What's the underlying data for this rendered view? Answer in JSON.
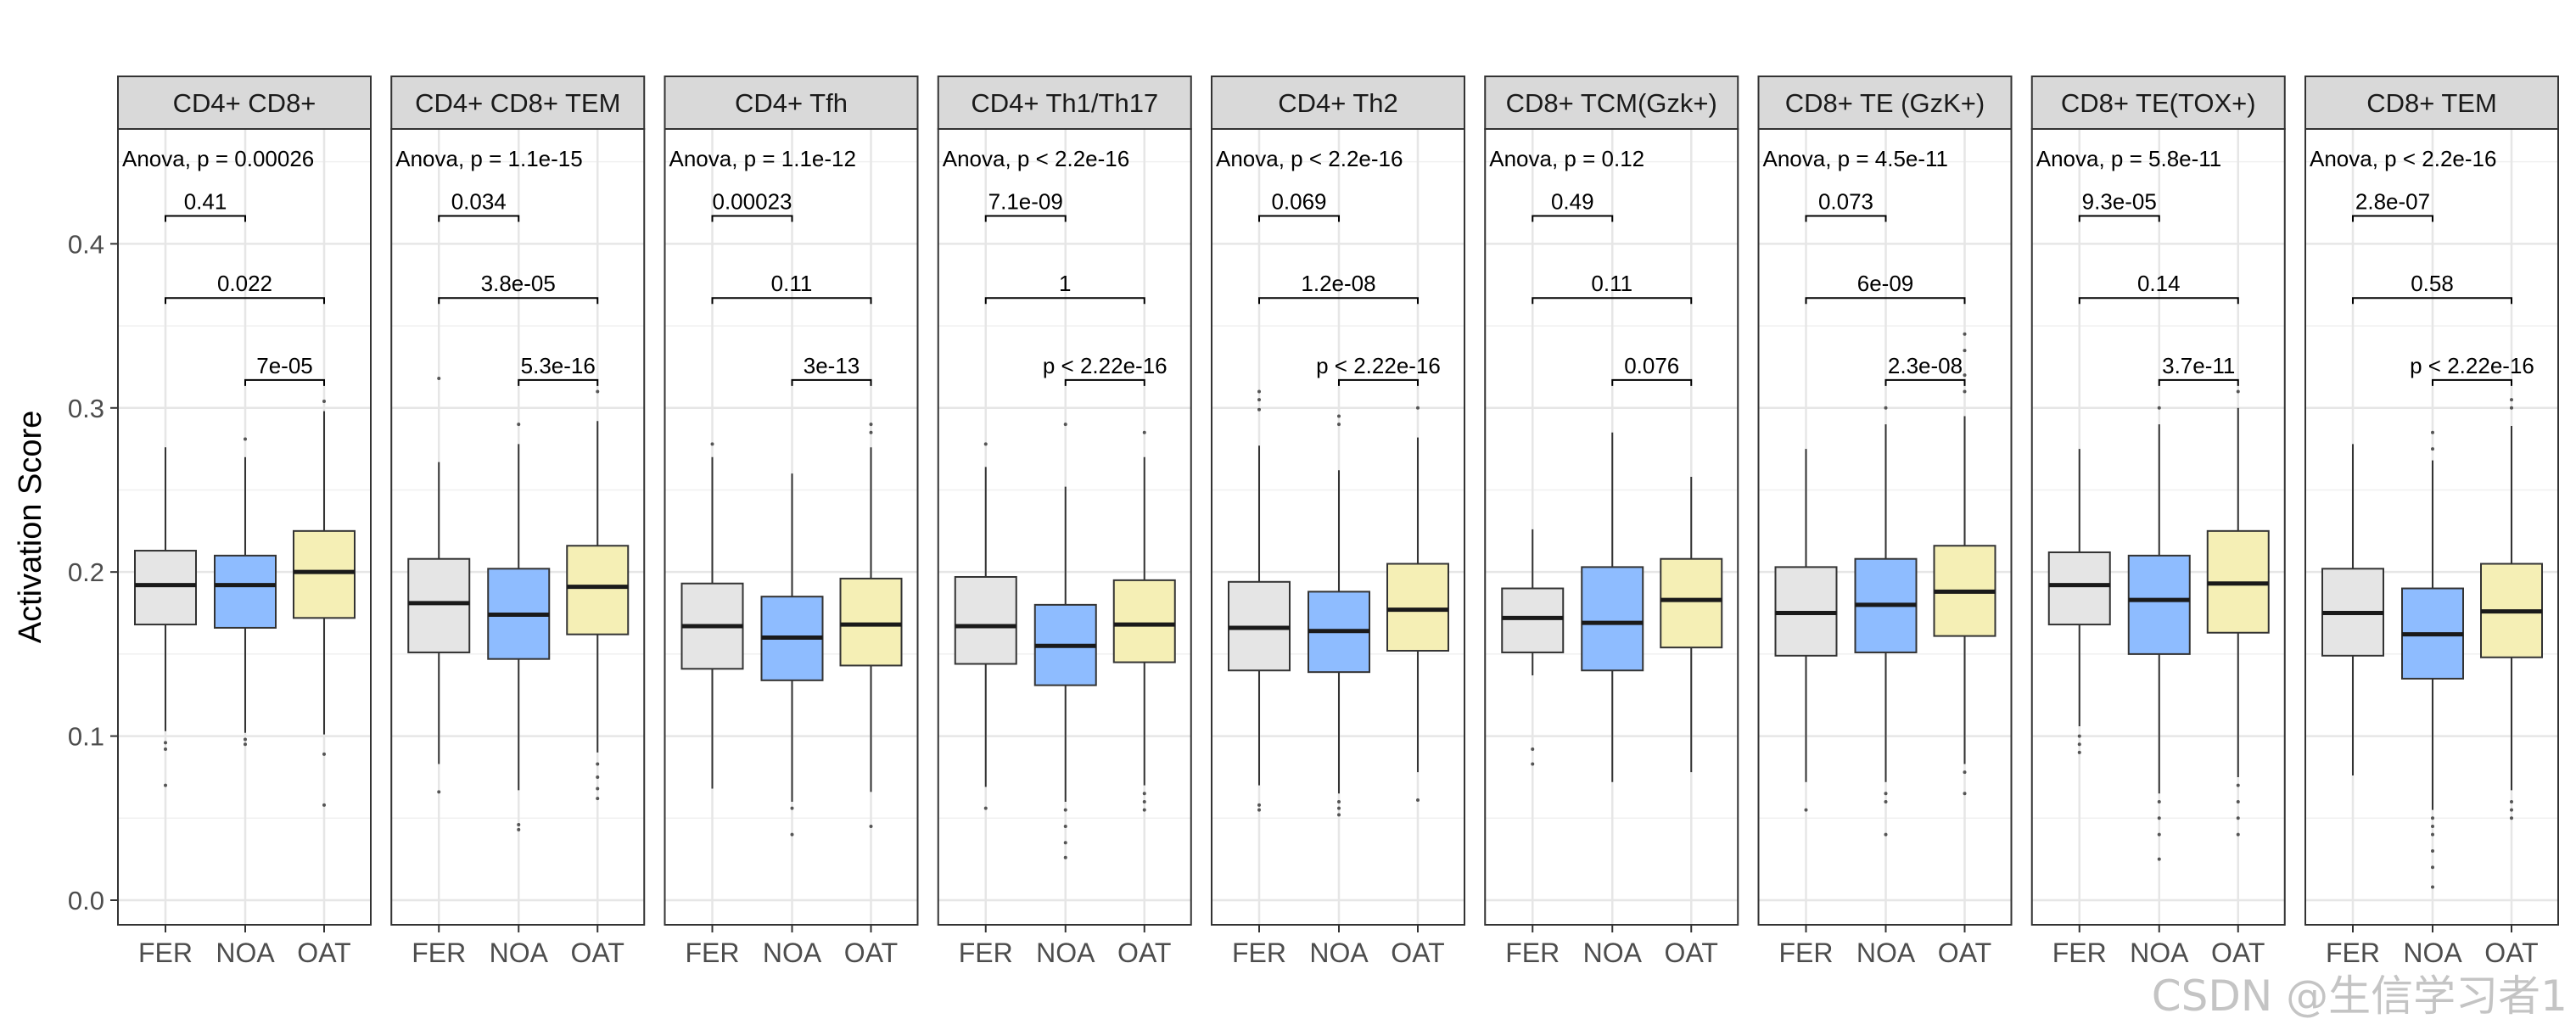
{
  "chart_data": {
    "type": "box",
    "ylabel": "Activation Score",
    "yticks": [
      0.0,
      0.1,
      0.2,
      0.3,
      0.4
    ],
    "ytick_labels": [
      "0.0",
      "0.1",
      "0.2",
      "0.3",
      "0.4"
    ],
    "ylim": [
      -0.015,
      0.47
    ],
    "categories": [
      "FER",
      "NOA",
      "OAT"
    ],
    "category_colors": [
      "#e5e5e5",
      "#8ebcff",
      "#f5efb5"
    ],
    "grid": true,
    "legend": "none",
    "panels": [
      {
        "title": "CD4+ CD8+",
        "anova": "Anova, p = 0.00026",
        "pvalues": {
          "FER_NOA": "0.41",
          "FER_OAT": "0.022",
          "NOA_OAT": "7e-05"
        },
        "boxes": [
          {
            "group": "FER",
            "lower_whisker": 0.103,
            "q1": 0.168,
            "median": 0.192,
            "q3": 0.213,
            "upper_whisker": 0.276,
            "outliers": [
              0.096,
              0.092,
              0.07
            ]
          },
          {
            "group": "NOA",
            "lower_whisker": 0.102,
            "q1": 0.166,
            "median": 0.192,
            "q3": 0.21,
            "upper_whisker": 0.27,
            "outliers": [
              0.281,
              0.098,
              0.095
            ]
          },
          {
            "group": "OAT",
            "lower_whisker": 0.101,
            "q1": 0.172,
            "median": 0.2,
            "q3": 0.225,
            "upper_whisker": 0.298,
            "outliers": [
              0.304,
              0.089,
              0.058
            ]
          }
        ]
      },
      {
        "title": "CD4+ CD8+ TEM",
        "anova": "Anova, p = 1.1e-15",
        "pvalues": {
          "FER_NOA": "0.034",
          "FER_OAT": "3.8e-05",
          "NOA_OAT": "5.3e-16"
        },
        "boxes": [
          {
            "group": "FER",
            "lower_whisker": 0.083,
            "q1": 0.151,
            "median": 0.181,
            "q3": 0.208,
            "upper_whisker": 0.267,
            "outliers": [
              0.318,
              0.066
            ]
          },
          {
            "group": "NOA",
            "lower_whisker": 0.067,
            "q1": 0.147,
            "median": 0.174,
            "q3": 0.202,
            "upper_whisker": 0.278,
            "outliers": [
              0.29,
              0.046,
              0.043
            ]
          },
          {
            "group": "OAT",
            "lower_whisker": 0.09,
            "q1": 0.162,
            "median": 0.191,
            "q3": 0.216,
            "upper_whisker": 0.292,
            "outliers": [
              0.31,
              0.083,
              0.075,
              0.068,
              0.062
            ]
          }
        ]
      },
      {
        "title": "CD4+ Tfh",
        "anova": "Anova, p = 1.1e-12",
        "pvalues": {
          "FER_NOA": "0.00023",
          "FER_OAT": "0.11",
          "NOA_OAT": "3e-13"
        },
        "boxes": [
          {
            "group": "FER",
            "lower_whisker": 0.068,
            "q1": 0.141,
            "median": 0.167,
            "q3": 0.193,
            "upper_whisker": 0.27,
            "outliers": [
              0.278
            ]
          },
          {
            "group": "NOA",
            "lower_whisker": 0.06,
            "q1": 0.134,
            "median": 0.16,
            "q3": 0.185,
            "upper_whisker": 0.26,
            "outliers": [
              0.056,
              0.04
            ]
          },
          {
            "group": "OAT",
            "lower_whisker": 0.066,
            "q1": 0.143,
            "median": 0.168,
            "q3": 0.196,
            "upper_whisker": 0.276,
            "outliers": [
              0.29,
              0.285,
              0.045
            ]
          }
        ]
      },
      {
        "title": "CD4+ Th1/Th17",
        "anova": "Anova, p < 2.2e-16",
        "pvalues": {
          "FER_NOA": "7.1e-09",
          "FER_OAT": "1",
          "NOA_OAT": "p < 2.22e-16"
        },
        "boxes": [
          {
            "group": "FER",
            "lower_whisker": 0.069,
            "q1": 0.144,
            "median": 0.167,
            "q3": 0.197,
            "upper_whisker": 0.264,
            "outliers": [
              0.278,
              0.056
            ]
          },
          {
            "group": "NOA",
            "lower_whisker": 0.06,
            "q1": 0.131,
            "median": 0.155,
            "q3": 0.18,
            "upper_whisker": 0.252,
            "outliers": [
              0.29,
              0.055,
              0.045,
              0.035,
              0.026
            ]
          },
          {
            "group": "OAT",
            "lower_whisker": 0.07,
            "q1": 0.145,
            "median": 0.168,
            "q3": 0.195,
            "upper_whisker": 0.27,
            "outliers": [
              0.285,
              0.065,
              0.06,
              0.055
            ]
          }
        ]
      },
      {
        "title": "CD4+ Th2",
        "anova": "Anova, p < 2.2e-16",
        "pvalues": {
          "FER_NOA": "0.069",
          "FER_OAT": "1.2e-08",
          "NOA_OAT": "p < 2.22e-16"
        },
        "boxes": [
          {
            "group": "FER",
            "lower_whisker": 0.07,
            "q1": 0.14,
            "median": 0.166,
            "q3": 0.194,
            "upper_whisker": 0.277,
            "outliers": [
              0.31,
              0.305,
              0.299,
              0.058,
              0.055
            ]
          },
          {
            "group": "NOA",
            "lower_whisker": 0.065,
            "q1": 0.139,
            "median": 0.164,
            "q3": 0.188,
            "upper_whisker": 0.262,
            "outliers": [
              0.295,
              0.29,
              0.06,
              0.056,
              0.052
            ]
          },
          {
            "group": "OAT",
            "lower_whisker": 0.078,
            "q1": 0.152,
            "median": 0.177,
            "q3": 0.205,
            "upper_whisker": 0.282,
            "outliers": [
              0.3,
              0.061
            ]
          }
        ]
      },
      {
        "title": "CD8+ TCM(Gzk+)",
        "anova": "Anova, p = 0.12",
        "pvalues": {
          "FER_NOA": "0.49",
          "FER_OAT": "0.11",
          "NOA_OAT": "0.076"
        },
        "boxes": [
          {
            "group": "FER",
            "lower_whisker": 0.137,
            "q1": 0.151,
            "median": 0.172,
            "q3": 0.19,
            "upper_whisker": 0.226,
            "outliers": [
              0.092,
              0.083
            ]
          },
          {
            "group": "NOA",
            "lower_whisker": 0.072,
            "q1": 0.14,
            "median": 0.169,
            "q3": 0.203,
            "upper_whisker": 0.285,
            "outliers": []
          },
          {
            "group": "OAT",
            "lower_whisker": 0.078,
            "q1": 0.154,
            "median": 0.183,
            "q3": 0.208,
            "upper_whisker": 0.258,
            "outliers": []
          }
        ]
      },
      {
        "title": "CD8+ TE (GzK+)",
        "anova": "Anova, p = 4.5e-11",
        "pvalues": {
          "FER_NOA": "0.073",
          "FER_OAT": "6e-09",
          "NOA_OAT": "2.3e-08"
        },
        "boxes": [
          {
            "group": "FER",
            "lower_whisker": 0.072,
            "q1": 0.149,
            "median": 0.175,
            "q3": 0.203,
            "upper_whisker": 0.275,
            "outliers": [
              0.055
            ]
          },
          {
            "group": "NOA",
            "lower_whisker": 0.072,
            "q1": 0.151,
            "median": 0.18,
            "q3": 0.208,
            "upper_whisker": 0.29,
            "outliers": [
              0.3,
              0.065,
              0.06,
              0.04
            ]
          },
          {
            "group": "OAT",
            "lower_whisker": 0.083,
            "q1": 0.161,
            "median": 0.188,
            "q3": 0.216,
            "upper_whisker": 0.295,
            "outliers": [
              0.345,
              0.335,
              0.32,
              0.31,
              0.078,
              0.065
            ]
          }
        ]
      },
      {
        "title": "CD8+ TE(TOX+)",
        "anova": "Anova, p = 5.8e-11",
        "pvalues": {
          "FER_NOA": "9.3e-05",
          "FER_OAT": "0.14",
          "NOA_OAT": "3.7e-11"
        },
        "boxes": [
          {
            "group": "FER",
            "lower_whisker": 0.106,
            "q1": 0.168,
            "median": 0.192,
            "q3": 0.212,
            "upper_whisker": 0.275,
            "outliers": [
              0.1,
              0.095,
              0.09
            ]
          },
          {
            "group": "NOA",
            "lower_whisker": 0.065,
            "q1": 0.15,
            "median": 0.183,
            "q3": 0.21,
            "upper_whisker": 0.29,
            "outliers": [
              0.3,
              0.06,
              0.05,
              0.04,
              0.025
            ]
          },
          {
            "group": "OAT",
            "lower_whisker": 0.075,
            "q1": 0.163,
            "median": 0.193,
            "q3": 0.225,
            "upper_whisker": 0.3,
            "outliers": [
              0.31,
              0.07,
              0.06,
              0.05,
              0.04
            ]
          }
        ]
      },
      {
        "title": "CD8+ TEM",
        "anova": "Anova, p < 2.2e-16",
        "pvalues": {
          "FER_NOA": "2.8e-07",
          "FER_OAT": "0.58",
          "NOA_OAT": "p < 2.22e-16"
        },
        "boxes": [
          {
            "group": "FER",
            "lower_whisker": 0.076,
            "q1": 0.149,
            "median": 0.175,
            "q3": 0.202,
            "upper_whisker": 0.278,
            "outliers": []
          },
          {
            "group": "NOA",
            "lower_whisker": 0.055,
            "q1": 0.135,
            "median": 0.162,
            "q3": 0.19,
            "upper_whisker": 0.268,
            "outliers": [
              0.285,
              0.275,
              0.05,
              0.045,
              0.04,
              0.03,
              0.02,
              0.008
            ]
          },
          {
            "group": "OAT",
            "lower_whisker": 0.067,
            "q1": 0.148,
            "median": 0.176,
            "q3": 0.205,
            "upper_whisker": 0.289,
            "outliers": [
              0.305,
              0.3,
              0.06,
              0.055,
              0.05
            ]
          }
        ]
      }
    ]
  },
  "watermark": "CSDN @生信学习者1"
}
